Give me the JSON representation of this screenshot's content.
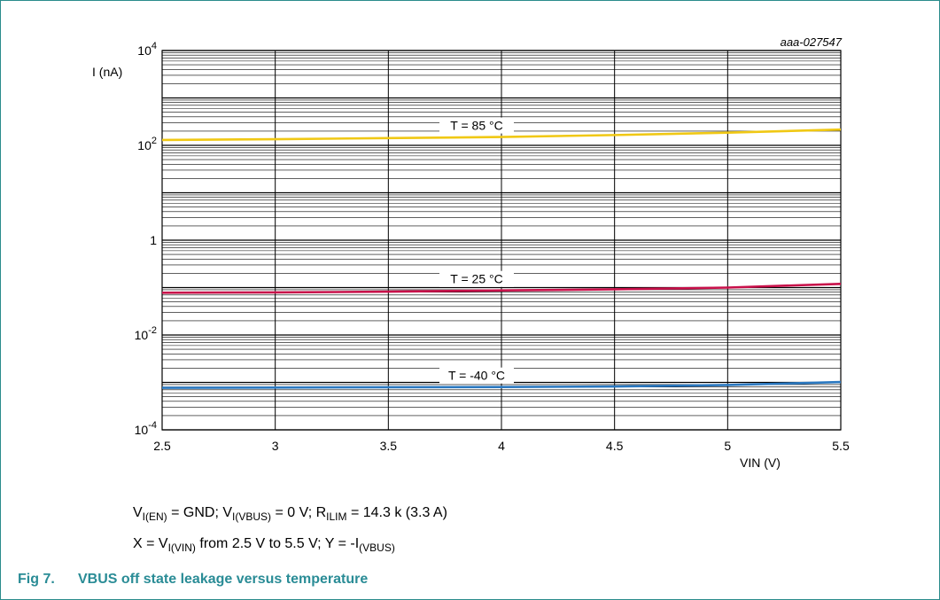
{
  "figure": {
    "number": "Fig 7.",
    "title": "VBUS off state leakage versus temperature"
  },
  "conditions": {
    "line1": {
      "v1": "V",
      "v1_sub": "I(EN)",
      "t1": " = GND; ",
      "v2": "V",
      "v2_sub": "I(VBUS)",
      "t2": " = 0 V; ",
      "r": "R",
      "r_sub": "ILIM",
      "t3": " = 14.3 k (3.3 A)"
    },
    "line2": {
      "t1": "X = ",
      "v1": "V",
      "v1_sub": "I(VIN)",
      "t2": " from 2.5 V to 5.5 V; Y = -I",
      "y_sub": "(VBUS)"
    }
  },
  "chart_data": {
    "type": "line",
    "code": "aaa-027547",
    "xlabel": "VIN (V)",
    "ylabel": "I (nA)",
    "xlim": [
      2.5,
      5.5
    ],
    "ylim": [
      0.0001,
      10000
    ],
    "yscale": "log",
    "grid": true,
    "x_ticks": [
      "2.5",
      "3",
      "3.5",
      "4",
      "4.5",
      "5",
      "5.5"
    ],
    "y_ticks": [
      {
        "base": "10",
        "exp": "-4",
        "value": 0.0001
      },
      {
        "base": "10",
        "exp": "-2",
        "value": 0.01
      },
      {
        "base": "1",
        "exp": "",
        "value": 1
      },
      {
        "base": "10",
        "exp": "2",
        "value": 100
      },
      {
        "base": "10",
        "exp": "4",
        "value": 10000
      }
    ],
    "series": [
      {
        "name": "T = 85 °C",
        "color": "#f0c814",
        "x": [
          2.5,
          3.0,
          3.5,
          4.0,
          4.5,
          5.0,
          5.5
        ],
        "y": [
          130,
          135,
          142,
          150,
          165,
          185,
          215
        ]
      },
      {
        "name": "T = 25 °C",
        "color": "#c8104a",
        "x": [
          2.5,
          3.0,
          3.5,
          4.0,
          4.5,
          5.0,
          5.5
        ],
        "y": [
          0.078,
          0.079,
          0.082,
          0.087,
          0.092,
          0.1,
          0.12
        ]
      },
      {
        "name": "T = -40 °C",
        "color": "#2a78c0",
        "x": [
          2.5,
          3.0,
          3.5,
          4.0,
          4.5,
          5.0,
          5.5
        ],
        "y": [
          0.00077,
          0.00078,
          0.00079,
          0.0008,
          0.00082,
          0.00088,
          0.00102
        ]
      }
    ]
  }
}
